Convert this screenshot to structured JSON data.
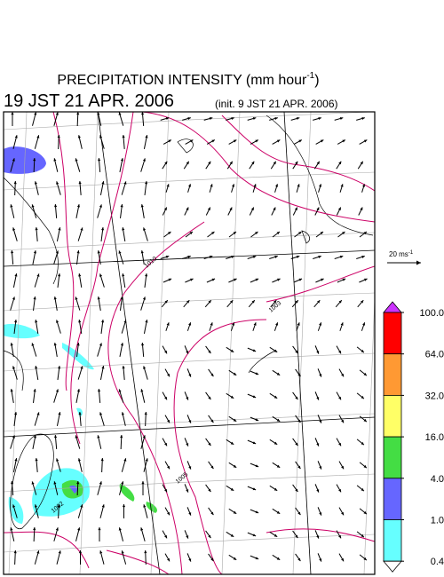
{
  "header": {
    "title": "PRECIPITATION INTENSITY (mm hour",
    "title_exponent": "-1",
    "title_end": ")",
    "valid_time": "19 JST 21 APR. 2006",
    "init_time": "(init. 9 JST 21 APR. 2006)"
  },
  "wind_scale": {
    "label": "20 ms",
    "exponent": "-1"
  },
  "colorbar": {
    "ticks": [
      {
        "value": 100,
        "label": "100.0"
      },
      {
        "value": 64,
        "label": "64.0"
      },
      {
        "value": 32,
        "label": "32.0"
      },
      {
        "value": 16,
        "label": "16.0"
      },
      {
        "value": 4,
        "label": "4.0"
      },
      {
        "value": 1,
        "label": "1.0"
      },
      {
        "value": 0.4,
        "label": "0.4"
      }
    ],
    "colors": [
      "#ff0000",
      "#ff9933",
      "#ffff66",
      "#44dd44",
      "#6666ff",
      "#66ffff"
    ],
    "over_color": "#cc33ff"
  },
  "contour_labels": [
    "1010",
    "1003",
    "1005",
    "1002"
  ]
}
